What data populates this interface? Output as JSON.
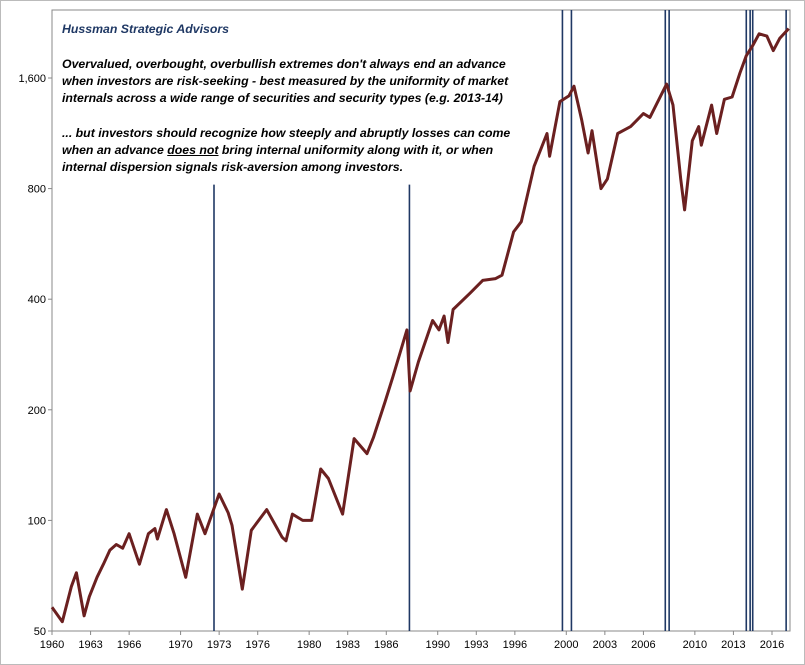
{
  "chart_data": {
    "type": "line",
    "title": "Hussman Strategic Advisors",
    "note1": [
      "Overvalued, overbought, overbullish extremes don't always end an advance",
      "when investors are risk-seeking - best measured by the uniformity of market",
      "internals across a wide range of securities and security types (e.g. 2013-14)"
    ],
    "note2": {
      "line1": "... but investors should recognize how steeply and abruptly losses can come",
      "line2_before": "when an advance ",
      "line2_underlined": "does not",
      "line2_after": " bring internal uniformity along with it, or when",
      "line3": "internal dispersion signals risk-aversion among investors."
    },
    "log_y": true,
    "xlim": [
      1960,
      2017.4
    ],
    "ylim": [
      50,
      2450
    ],
    "yticks": [
      50,
      100,
      200,
      400,
      800,
      {
        "value": 1600,
        "label": "1,600"
      }
    ],
    "xticks": [
      1960,
      1963,
      1966,
      1970,
      1973,
      1976,
      1980,
      1983,
      1986,
      1990,
      1993,
      1996,
      2000,
      2003,
      2006,
      2010,
      2013,
      2016
    ],
    "series": [
      {
        "color": "#6b2020",
        "x": [
          1960.0,
          1960.8,
          1961.5,
          1961.9,
          1962.5,
          1962.9,
          1963.5,
          1964.0,
          1964.5,
          1965.0,
          1965.5,
          1966.0,
          1966.8,
          1967.5,
          1968.0,
          1968.2,
          1968.9,
          1969.5,
          1970.4,
          1971.3,
          1971.9,
          1973.0,
          1973.7,
          1974.0,
          1974.8,
          1975.5,
          1976.7,
          1977.9,
          1978.2,
          1978.7,
          1979.5,
          1980.2,
          1980.9,
          1981.5,
          1982.6,
          1983.5,
          1984.5,
          1985.0,
          1985.9,
          1986.5,
          1987.6,
          1987.85,
          1988.5,
          1989.6,
          1990.1,
          1990.5,
          1990.8,
          1991.2,
          1992.5,
          1993.5,
          1994.5,
          1995.0,
          1995.9,
          1996.5,
          1997.5,
          1998.5,
          1998.7,
          1999.5,
          2000.2,
          2000.6,
          2001.2,
          2001.7,
          2002.0,
          2002.7,
          2003.2,
          2004.0,
          2005.0,
          2006.0,
          2006.5,
          2007.8,
          2008.3,
          2008.9,
          2009.2,
          2009.8,
          2010.3,
          2010.5,
          2011.3,
          2011.7,
          2012.3,
          2012.9,
          2013.5,
          2014.0,
          2014.5,
          2015.0,
          2015.6,
          2016.1,
          2016.6,
          2017.3
        ],
        "values": [
          58,
          53,
          66,
          72,
          55,
          62,
          70,
          76,
          83,
          86,
          84,
          92,
          76,
          92,
          95,
          89,
          107,
          92,
          70,
          104,
          92,
          118,
          105,
          97,
          65,
          94,
          107,
          90,
          88,
          104,
          100,
          100,
          138,
          130,
          104,
          167,
          152,
          168,
          210,
          245,
          330,
          225,
          270,
          350,
          330,
          360,
          305,
          375,
          415,
          450,
          455,
          465,
          610,
          650,
          920,
          1130,
          980,
          1380,
          1430,
          1520,
          1230,
          1000,
          1150,
          800,
          850,
          1130,
          1180,
          1280,
          1250,
          1540,
          1350,
          850,
          700,
          1080,
          1180,
          1050,
          1350,
          1130,
          1400,
          1420,
          1650,
          1840,
          1960,
          2110,
          2080,
          1900,
          2050,
          2180
        ]
      }
    ],
    "signal_lines": {
      "color": "#1f3864",
      "x": [
        1972.6,
        1987.8,
        1999.7,
        2000.4,
        2007.7,
        2008.0,
        2014.0,
        2014.3,
        2014.5,
        2017.1
      ],
      "y_end": [
        820,
        820,
        null,
        null,
        null,
        null,
        null,
        null,
        null,
        null
      ]
    }
  }
}
